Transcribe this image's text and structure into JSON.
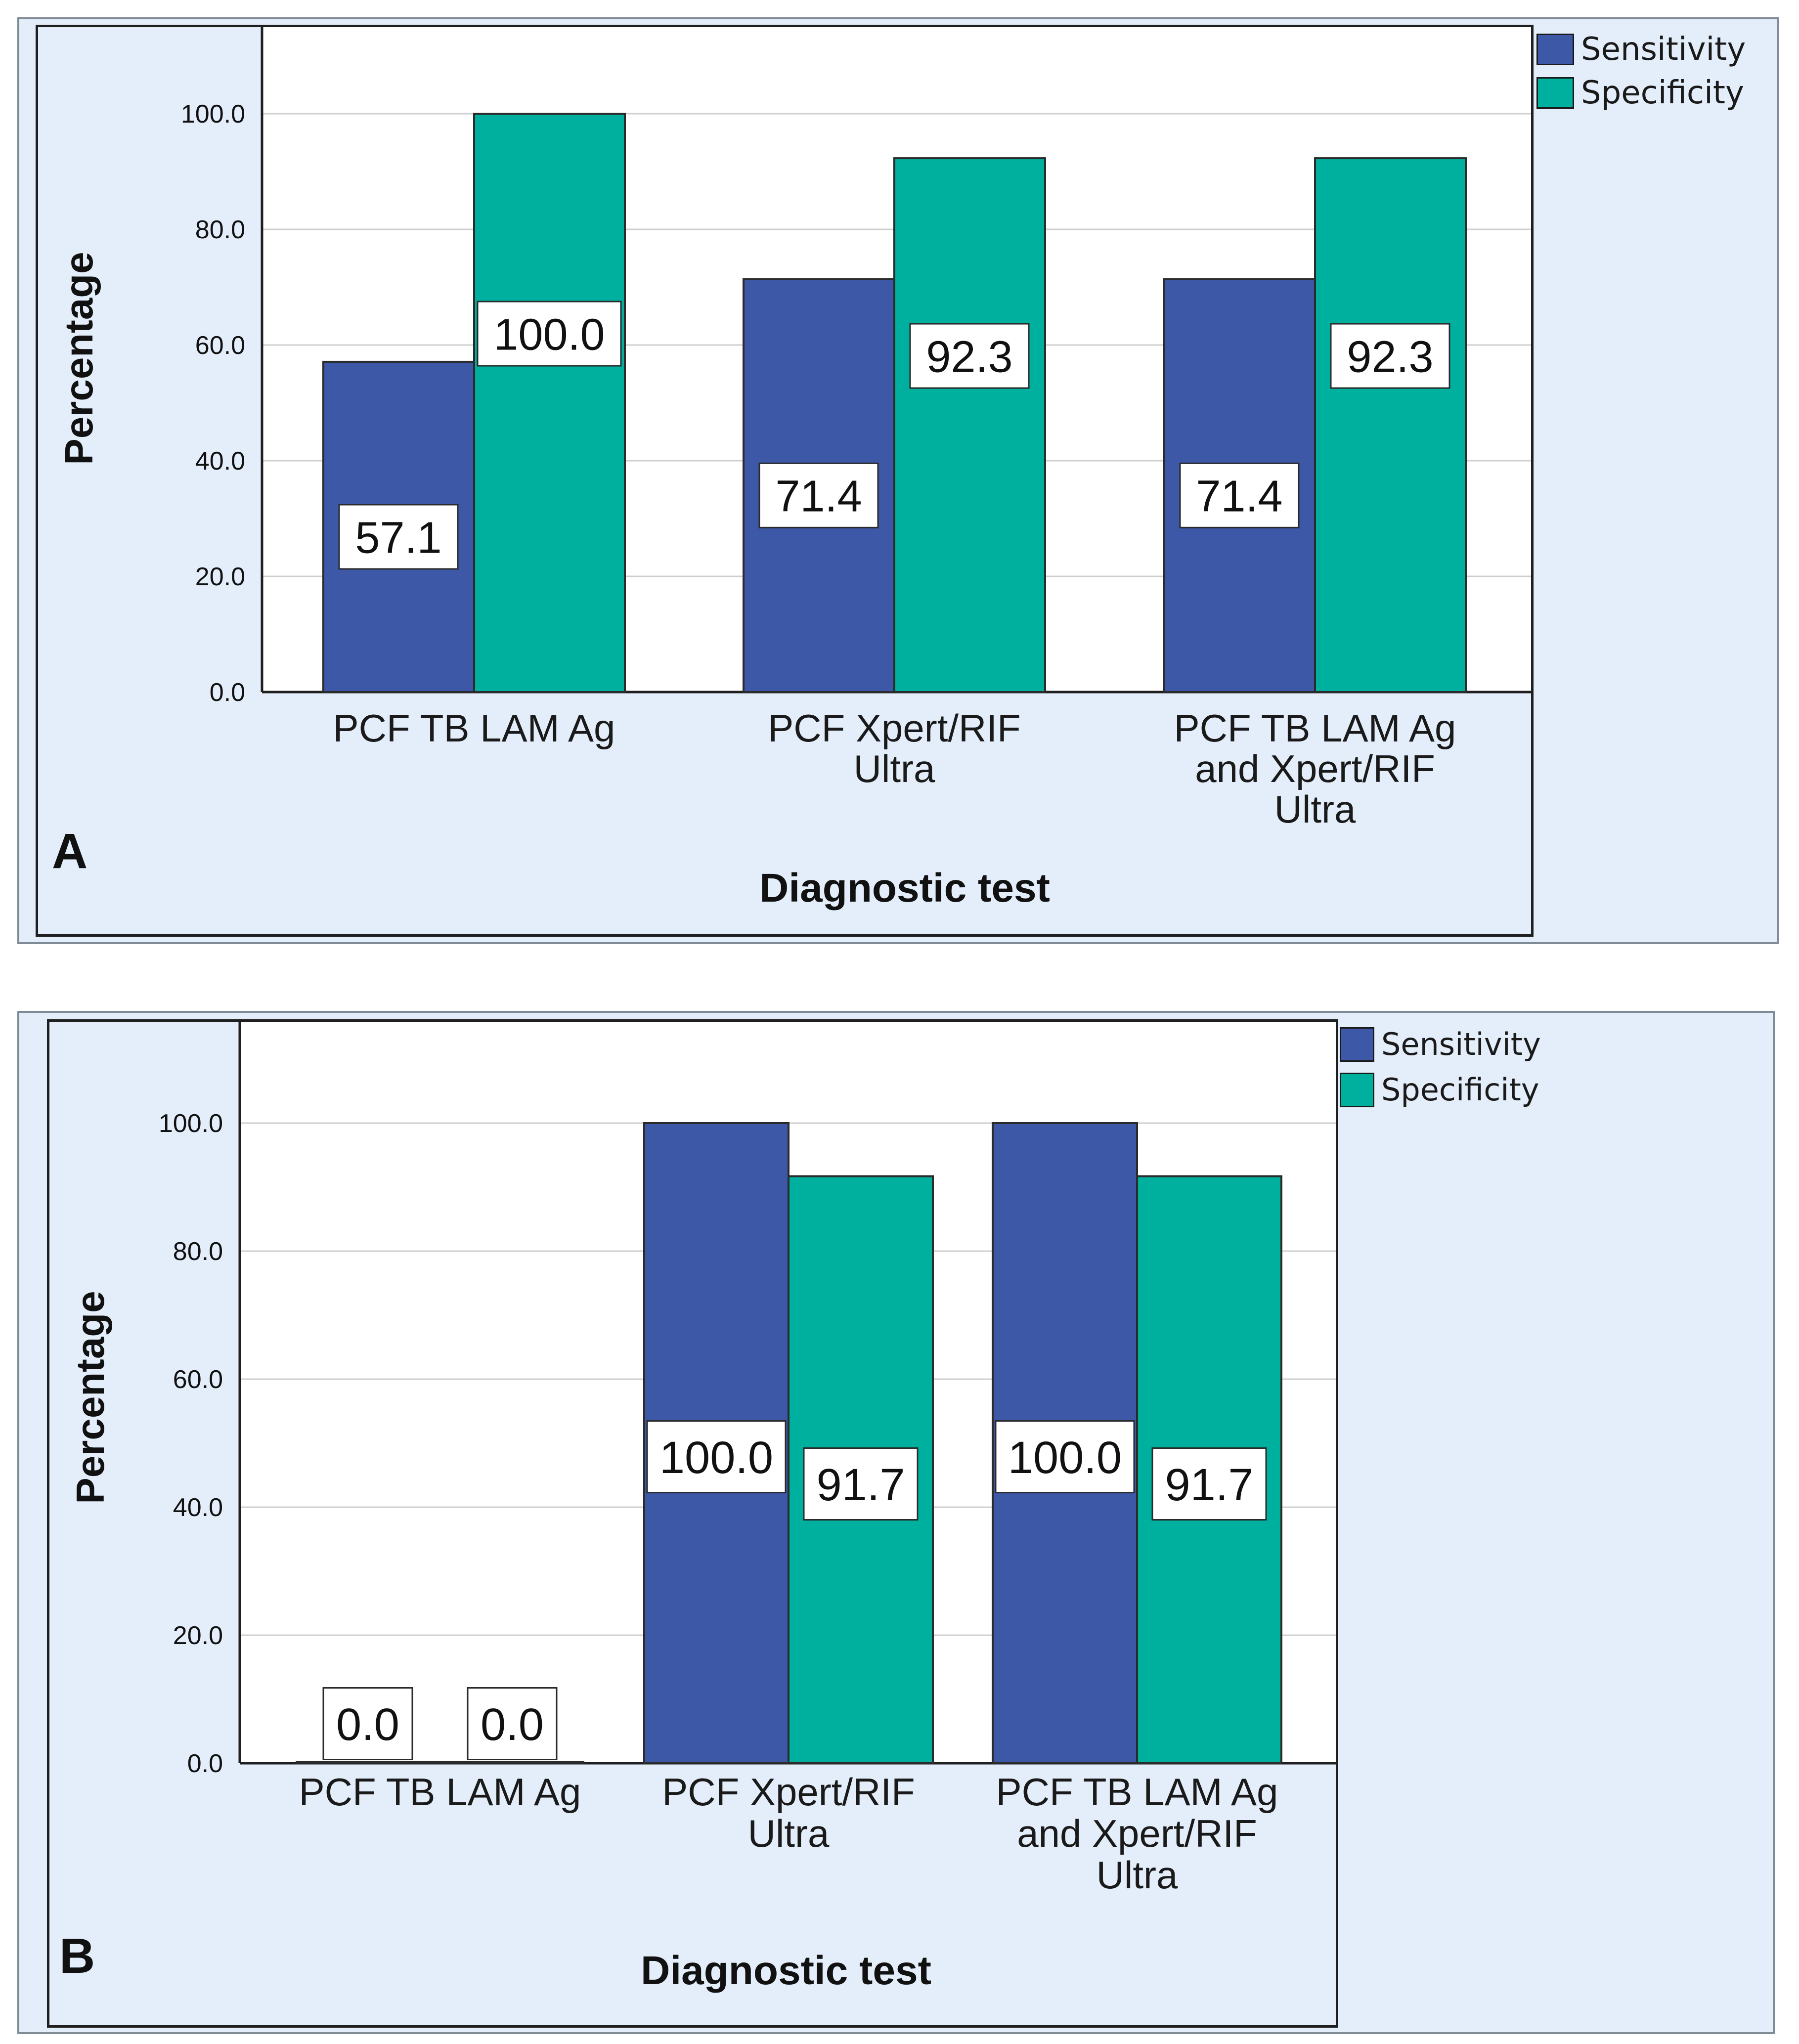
{
  "colors": {
    "sensitivity": "#3e58a8",
    "specificity": "#00b09e",
    "background": "#e4eefa",
    "plot": "#ffffff"
  },
  "chart_data": [
    {
      "panel": "A",
      "type": "bar",
      "categories": [
        "PCF TB LAM Ag",
        "PCF Xpert/RIF Ultra",
        "PCF TB LAM Ag and Xpert/RIF Ultra"
      ],
      "category_lines": [
        [
          "PCF TB LAM Ag"
        ],
        [
          "PCF Xpert/RIF",
          "Ultra"
        ],
        [
          "PCF TB LAM Ag",
          "and Xpert/RIF",
          "Ultra"
        ]
      ],
      "series": [
        {
          "name": "Sensitivity",
          "values": [
            57.1,
            71.4,
            71.4
          ]
        },
        {
          "name": "Specificity",
          "values": [
            100.0,
            92.3,
            92.3
          ]
        }
      ],
      "value_labels": [
        [
          "57.1",
          "71.4",
          "71.4"
        ],
        [
          "100.0",
          "92.3",
          "92.3"
        ]
      ],
      "xlabel": "Diagnostic test",
      "ylabel": "Percentage",
      "ylim": [
        0,
        115
      ],
      "yticks": [
        "0.0",
        "20.0",
        "40.0",
        "60.0",
        "80.0",
        "100.0"
      ],
      "legend": [
        "Sensitivity",
        "Specificity"
      ],
      "legend_position": "top-right",
      "grid": true
    },
    {
      "panel": "B",
      "type": "bar",
      "categories": [
        "PCF TB LAM Ag",
        "PCF Xpert/RIF Ultra",
        "PCF TB LAM Ag and Xpert/RIF Ultra"
      ],
      "category_lines": [
        [
          "PCF TB LAM Ag"
        ],
        [
          "PCF Xpert/RIF",
          "Ultra"
        ],
        [
          "PCF TB LAM Ag",
          "and Xpert/RIF",
          "Ultra"
        ]
      ],
      "series": [
        {
          "name": "Sensitivity",
          "values": [
            0.0,
            100.0,
            100.0
          ]
        },
        {
          "name": "Specificity",
          "values": [
            0.0,
            91.7,
            91.7
          ]
        }
      ],
      "value_labels": [
        [
          "0.0",
          "100.0",
          "100.0"
        ],
        [
          "0.0",
          "91.7",
          "91.7"
        ]
      ],
      "xlabel": "Diagnostic test",
      "ylabel": "Percentage",
      "ylim": [
        0,
        116
      ],
      "yticks": [
        "0.0",
        "20.0",
        "40.0",
        "60.0",
        "80.0",
        "100.0"
      ],
      "legend": [
        "Sensitivity",
        "Specificity"
      ],
      "legend_position": "top-right",
      "grid": true
    }
  ]
}
